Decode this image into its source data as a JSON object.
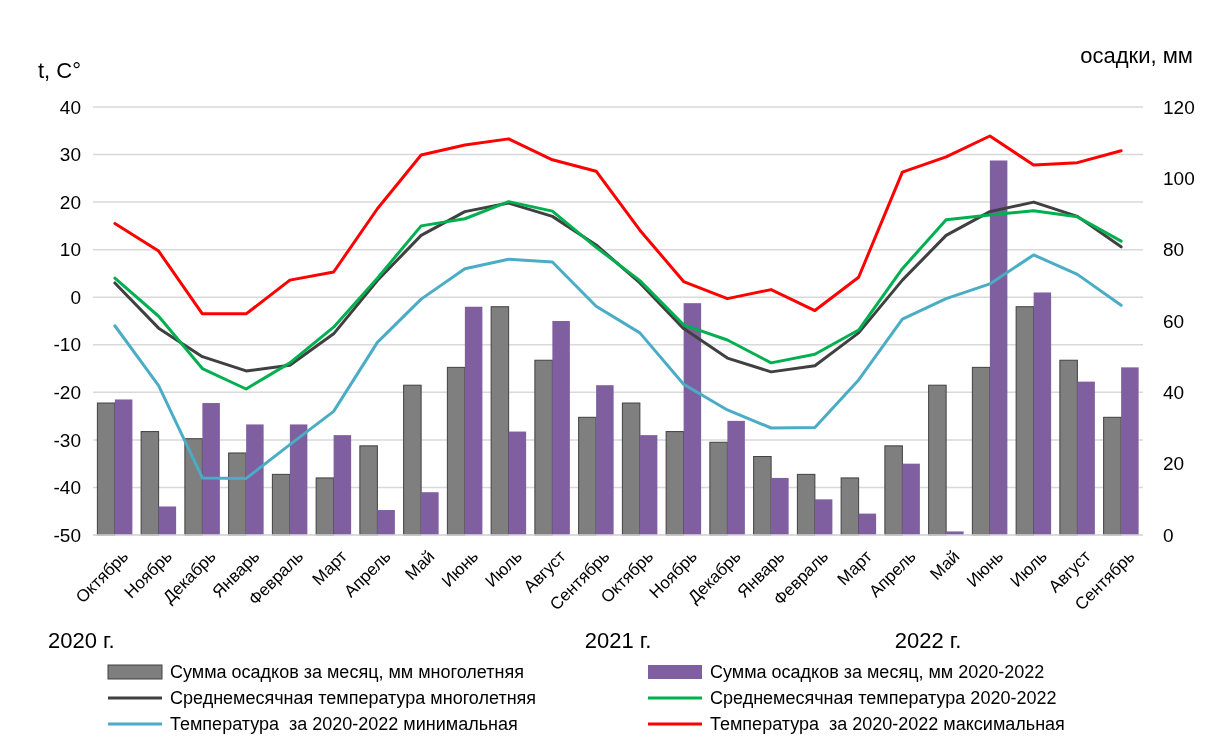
{
  "chart_data": {
    "type": "line",
    "ylabel": "t, C°",
    "y2label": "осадки, мм",
    "categories": [
      "Октябрь",
      "Ноябрь",
      "Декабрь",
      "Январь",
      "Февраль",
      "Март",
      "Апрель",
      "Май",
      "Июнь",
      "Июль",
      "Август",
      "Сентябрь",
      "Октябрь",
      "Ноябрь",
      "Декабрь",
      "Январь",
      "Февраль",
      "Март",
      "Апрель",
      "Май",
      "Июнь",
      "Июль",
      "Август",
      "Сентябрь"
    ],
    "series": [
      {
        "name": "Сумма осадков за месяц, мм многолетняя",
        "type": "bar",
        "axis": "y2",
        "color": "#7f7f7f",
        "values": [
          37,
          29,
          27,
          23,
          17,
          16,
          25,
          42,
          47,
          64,
          49,
          33,
          37,
          29,
          26,
          22,
          17,
          16,
          25,
          42,
          47,
          64,
          49,
          33
        ]
      },
      {
        "name": "Сумма осадков за месяц, мм 2020-2022",
        "type": "bar",
        "axis": "y2",
        "color": "#7f5fa0",
        "values": [
          38,
          8,
          37,
          31,
          31,
          28,
          7,
          12,
          64,
          29,
          60,
          42,
          28,
          65,
          32,
          16,
          10,
          6,
          20,
          1,
          105,
          68,
          43,
          47
        ]
      },
      {
        "name": "Среднемесячная температура многолетняя",
        "color": "#404040",
        "values": [
          3,
          -6.5,
          -12.5,
          -15.5,
          -14.3,
          -7.7,
          3.5,
          13,
          18,
          19.8,
          17,
          11,
          3,
          -6.6,
          -12.8,
          -15.7,
          -14.4,
          -7.5,
          3.6,
          13,
          18,
          20,
          17,
          10.6
        ]
      },
      {
        "name": "Среднемесячная температура 2020-2022",
        "color": "#00b050",
        "values": [
          4,
          -4,
          -15,
          -19.3,
          -13.8,
          -6.3,
          4,
          15,
          16.5,
          20.1,
          18.1,
          10.5,
          3.5,
          -5.8,
          -9,
          -13.8,
          -12,
          -6.9,
          6,
          16.3,
          17.3,
          18.2,
          16.9,
          11.8
        ]
      },
      {
        "name": "Температура  за 2020-2022 минимальная",
        "color": "#4bacc6",
        "values": [
          -6,
          -18.6,
          -38,
          -38.1,
          -31,
          -24,
          -9.5,
          -0.4,
          6,
          8,
          7.4,
          -1.9,
          -7.5,
          -18.3,
          -23.7,
          -27.5,
          -27.4,
          -17.4,
          -4.6,
          -0.3,
          2.8,
          8.9,
          4.8,
          -1.7
        ]
      },
      {
        "name": "Температура  за 2020-2022 максимальная",
        "color": "#ff0000",
        "values": [
          15.5,
          9.7,
          -3.5,
          -3.5,
          3.6,
          5.3,
          18.6,
          29.9,
          32,
          33.3,
          28.9,
          26.5,
          14.1,
          3.3,
          -0.3,
          1.6,
          -2.8,
          4.2,
          26.3,
          29.5,
          33.9,
          27.8,
          28.3,
          30.8
        ]
      }
    ],
    "ylim": [
      -50,
      40
    ],
    "yticks": [
      -50,
      -40,
      -30,
      -20,
      -10,
      0,
      10,
      20,
      30,
      40
    ],
    "y2lim": [
      0,
      120
    ],
    "y2ticks": [
      0,
      20,
      40,
      60,
      80,
      100,
      120
    ],
    "grid": "y",
    "legend": "bottom",
    "annotations": [
      "2020 г.",
      "2021 г.",
      "2022 г."
    ]
  }
}
